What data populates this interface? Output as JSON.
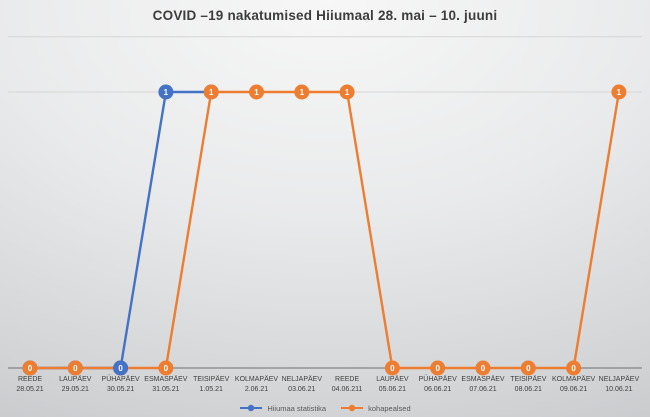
{
  "title": "COVID –19 nakatumised Hiiumaal 28. mai – 10. juuni",
  "colors": {
    "series_blue": "#4472C4",
    "series_orange": "#ED7D31",
    "gridline": "#d6d6d6",
    "axis_line": "#707070",
    "axis_label_text": "#3f3f3f",
    "legend_text": "#595959",
    "data_label_text": "#ffffff"
  },
  "chart_data": {
    "type": "line",
    "title": "COVID –19 nakatumised Hiiumaal 28. mai – 10. juuni",
    "categories": [
      "REEDE",
      "LAUPÄEV",
      "PÜHAPÄEV",
      "ESMASPÄEV",
      "TEISIPÄEV",
      "KOLMAPÄEV",
      "NELJAPÄEV",
      "REEDE",
      "LAUPÄEV",
      "PÜHAPÄEV",
      "ESMASPÄEV",
      "TEISIPÄEV",
      "KOLMAPÄEV",
      "NELJAPÄEV"
    ],
    "dates": [
      "28.05.21",
      "29.05.21",
      "30.05.21",
      "31.05.21",
      "1.05.21",
      "2.06.21",
      "03.06.21",
      "04.06.211",
      "05.06.21",
      "06.06.21",
      "07.06.21",
      "08.06.21",
      "09.06.21",
      "10.06.21"
    ],
    "series": [
      {
        "name": "Hiiumaa statistika",
        "color": "#4472C4",
        "values": [
          0,
          0,
          0,
          1,
          1,
          null,
          null,
          null,
          null,
          null,
          null,
          null,
          null,
          null
        ]
      },
      {
        "name": "kohapealsed",
        "color": "#ED7D31",
        "values": [
          0,
          0,
          0,
          0,
          1,
          1,
          1,
          1,
          0,
          0,
          0,
          0,
          0,
          1
        ]
      }
    ],
    "data_labels": true,
    "ylim": [
      0,
      1.2
    ],
    "gridlines_at": [
      1,
      1.2
    ],
    "y_axis_labels_visible": false,
    "legend_position": "bottom",
    "top_marker_overlay": {
      "series": 0,
      "index": 2
    }
  }
}
